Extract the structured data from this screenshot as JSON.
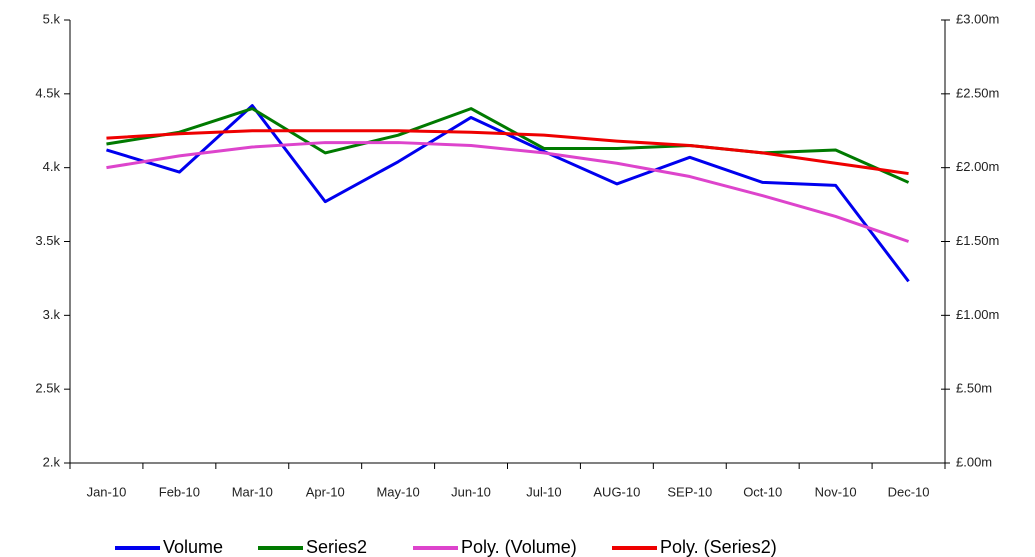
{
  "chart_data": {
    "type": "line",
    "categories": [
      "Jan-10",
      "Feb-10",
      "Mar-10",
      "Apr-10",
      "May-10",
      "Jun-10",
      "Jul-10",
      "AUG-10",
      "SEP-10",
      "Oct-10",
      "Nov-10",
      "Dec-10"
    ],
    "series": [
      {
        "name": "Volume",
        "color": "#0000ee",
        "values": [
          4120,
          3970,
          4420,
          3770,
          4040,
          4340,
          4110,
          3890,
          4070,
          3900,
          3880,
          3230
        ]
      },
      {
        "name": "Series2",
        "color": "#007a00",
        "axis": "y2",
        "values": [
          2.16,
          2.24,
          2.4,
          2.1,
          2.22,
          2.4,
          2.13,
          2.13,
          2.15,
          2.1,
          2.12,
          1.9
        ]
      },
      {
        "name": "Poly. (Volume)",
        "color": "#dd44cc",
        "values": [
          4000,
          4080,
          4140,
          4170,
          4170,
          4150,
          4100,
          4030,
          3940,
          3810,
          3670,
          3500
        ]
      },
      {
        "name": "Poly. (Series2)",
        "color": "#ee0000",
        "axis": "y2",
        "values": [
          2.2,
          2.23,
          2.25,
          2.25,
          2.25,
          2.24,
          2.22,
          2.18,
          2.15,
          2.1,
          2.03,
          1.96
        ]
      }
    ],
    "ylim": [
      2000,
      5000
    ],
    "yticks": [
      {
        "value": 2000,
        "label": "2.k"
      },
      {
        "value": 2500,
        "label": "2.5k"
      },
      {
        "value": 3000,
        "label": "3.k"
      },
      {
        "value": 3500,
        "label": "3.5k"
      },
      {
        "value": 4000,
        "label": "4.k"
      },
      {
        "value": 4500,
        "label": "4.5k"
      },
      {
        "value": 5000,
        "label": "5.k"
      }
    ],
    "y2lim": [
      0,
      3
    ],
    "y2ticks": [
      {
        "value": 0,
        "label": "£.00m"
      },
      {
        "value": 0.5,
        "label": "£.50m"
      },
      {
        "value": 1,
        "label": "£1.00m"
      },
      {
        "value": 1.5,
        "label": "£1.50m"
      },
      {
        "value": 2,
        "label": "£2.00m"
      },
      {
        "value": 2.5,
        "label": "£2.50m"
      },
      {
        "value": 3,
        "label": "£3.00m"
      }
    ],
    "grid": false,
    "legend": "bottom"
  }
}
